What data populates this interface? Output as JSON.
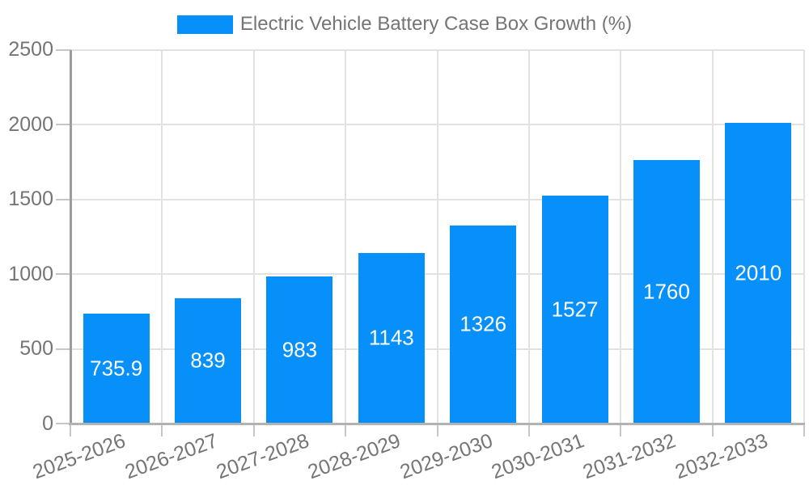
{
  "legend": {
    "label": "Electric Vehicle Battery Case Box Growth (%)"
  },
  "chart_data": {
    "type": "bar",
    "title": "",
    "categories": [
      "2025-2026",
      "2026-2027",
      "2027-2028",
      "2028-2029",
      "2029-2030",
      "2030-2031",
      "2031-2032",
      "2032-2033"
    ],
    "series": [
      {
        "name": "Electric Vehicle Battery Case Box Growth (%)",
        "values": [
          735.9,
          839,
          983,
          1143,
          1326,
          1527,
          1760,
          2010
        ]
      }
    ],
    "data_labels": [
      "735.9",
      "839",
      "983",
      "1143",
      "1326",
      "1527",
      "1760",
      "2010"
    ],
    "xlabel": "",
    "ylabel": "",
    "ylim": [
      0,
      2500
    ],
    "yticks": [
      0,
      500,
      1000,
      1500,
      2000,
      2500
    ],
    "grid": true,
    "legend_position": "top-center",
    "colors": {
      "bar": "#0890fa",
      "axis_text": "#757575",
      "value_text": "#ffffff",
      "gridline": "#e2e2e2",
      "tick": "#c6c6c6",
      "axis_y_line": "#9c9c9c",
      "axis_x_line": "#b2b2b2"
    }
  }
}
